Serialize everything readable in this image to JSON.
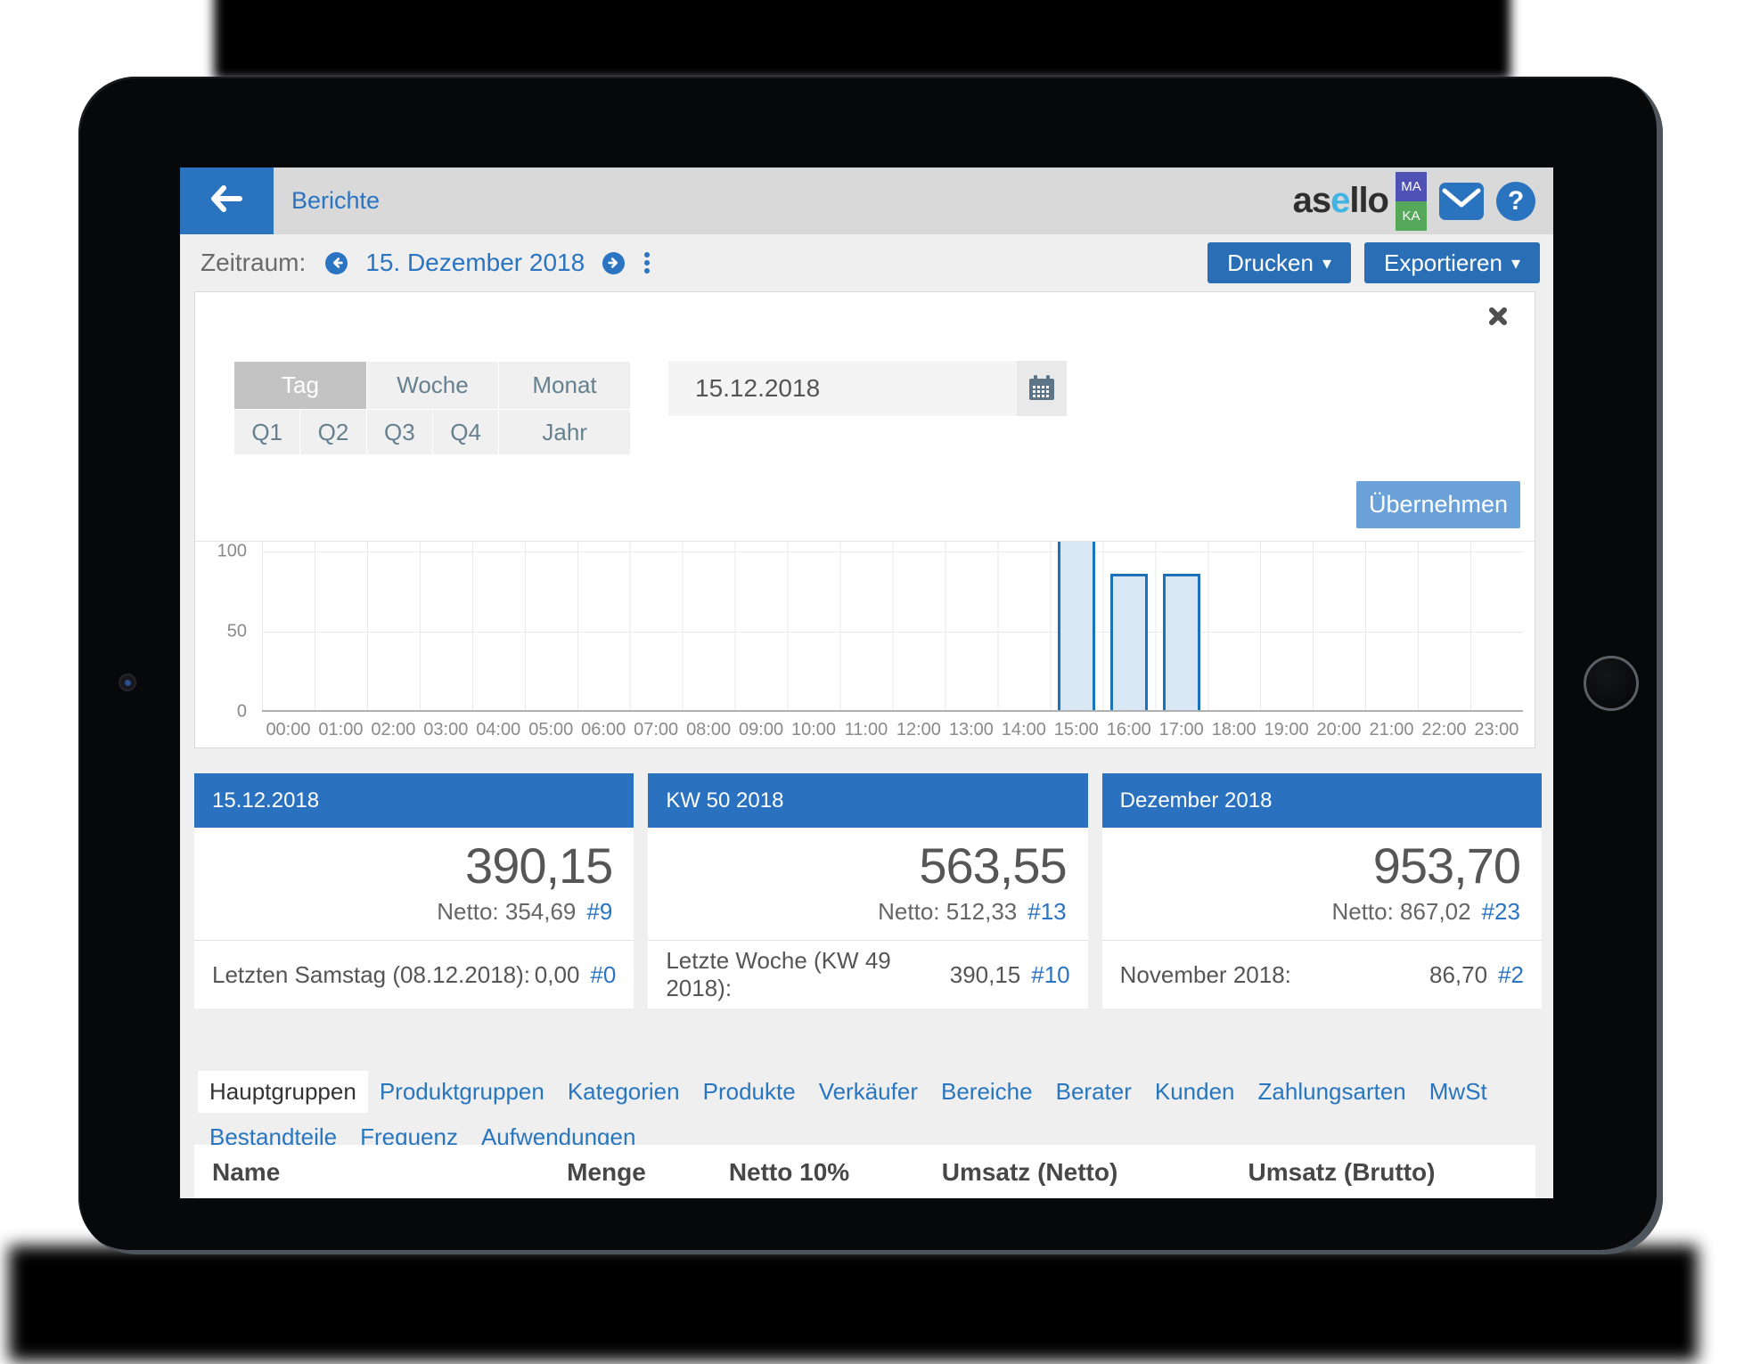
{
  "header": {
    "title": "Berichte",
    "logo": {
      "pre": "as",
      "accent": "e",
      "post": "llo",
      "badge_top": "MA",
      "badge_bottom": "KA"
    }
  },
  "toolbar": {
    "label": "Zeitraum:",
    "date": "15. Dezember 2018",
    "print_label": "Drucken",
    "export_label": "Exportieren"
  },
  "picker": {
    "periods_row1": [
      "Tag",
      "Woche",
      "Monat"
    ],
    "periods_row2": [
      "Q1",
      "Q2",
      "Q3",
      "Q4",
      "Jahr"
    ],
    "active_period": "Tag",
    "date_value": "15.12.2018",
    "apply_label": "Übernehmen"
  },
  "chart_data": {
    "type": "bar",
    "x": [
      "00:00",
      "01:00",
      "02:00",
      "03:00",
      "04:00",
      "05:00",
      "06:00",
      "07:00",
      "08:00",
      "09:00",
      "10:00",
      "11:00",
      "12:00",
      "13:00",
      "14:00",
      "15:00",
      "16:00",
      "17:00",
      "18:00",
      "19:00",
      "20:00",
      "21:00",
      "22:00",
      "23:00"
    ],
    "values": [
      0,
      0,
      0,
      0,
      0,
      0,
      0,
      0,
      0,
      0,
      0,
      0,
      0,
      0,
      0,
      110,
      85,
      85,
      0,
      0,
      0,
      0,
      0,
      0
    ],
    "title": "",
    "xlabel": "",
    "ylabel": "",
    "ylim": [
      0,
      100
    ],
    "yticks": [
      0,
      50,
      100
    ],
    "grid": true,
    "legend": "none",
    "note_clipped_bar": "15:00 bar extends above visible plot top (clipped by date panel)"
  },
  "cards": [
    {
      "title": "15.12.2018",
      "value": "390,15",
      "netto": "Netto: 354,69",
      "count": "#9",
      "footer_label": "Letzten Samstag (08.12.2018):",
      "footer_value": "0,00",
      "footer_count": "#0"
    },
    {
      "title": "KW 50 2018",
      "value": "563,55",
      "netto": "Netto: 512,33",
      "count": "#13",
      "footer_label": "Letzte Woche (KW 49 2018):",
      "footer_value": "390,15",
      "footer_count": "#10"
    },
    {
      "title": "Dezember 2018",
      "value": "953,70",
      "netto": "Netto: 867,02",
      "count": "#23",
      "footer_label": "November 2018:",
      "footer_value": "86,70",
      "footer_count": "#2"
    }
  ],
  "tabs": {
    "active": "Hauptgruppen",
    "row1": [
      "Hauptgruppen",
      "Produktgruppen",
      "Kategorien",
      "Produkte",
      "Verkäufer",
      "Bereiche",
      "Berater",
      "Kunden",
      "Zahlungsarten",
      "MwSt"
    ],
    "row2": [
      "Bestandteile",
      "Frequenz",
      "Aufwendungen"
    ]
  },
  "table": {
    "columns": [
      "Name",
      "Menge",
      "Netto 10%",
      "Umsatz (Netto)",
      "Umsatz (Brutto)"
    ]
  },
  "colors": {
    "link_blue": "#2a74c2",
    "button_blue": "#2a6fb6",
    "card_header_blue": "#2a72bf",
    "apply_blue": "#6aa1d8",
    "bar_fill": "#d9e7f5",
    "bar_border": "#1b72b8",
    "appbar_gray": "#d9d9d9",
    "screen_bg": "#efeff0",
    "badge_ma_purple": "#5051b4",
    "badge_ka_green": "#55a75a",
    "logo_accent": "#41b4e4"
  }
}
